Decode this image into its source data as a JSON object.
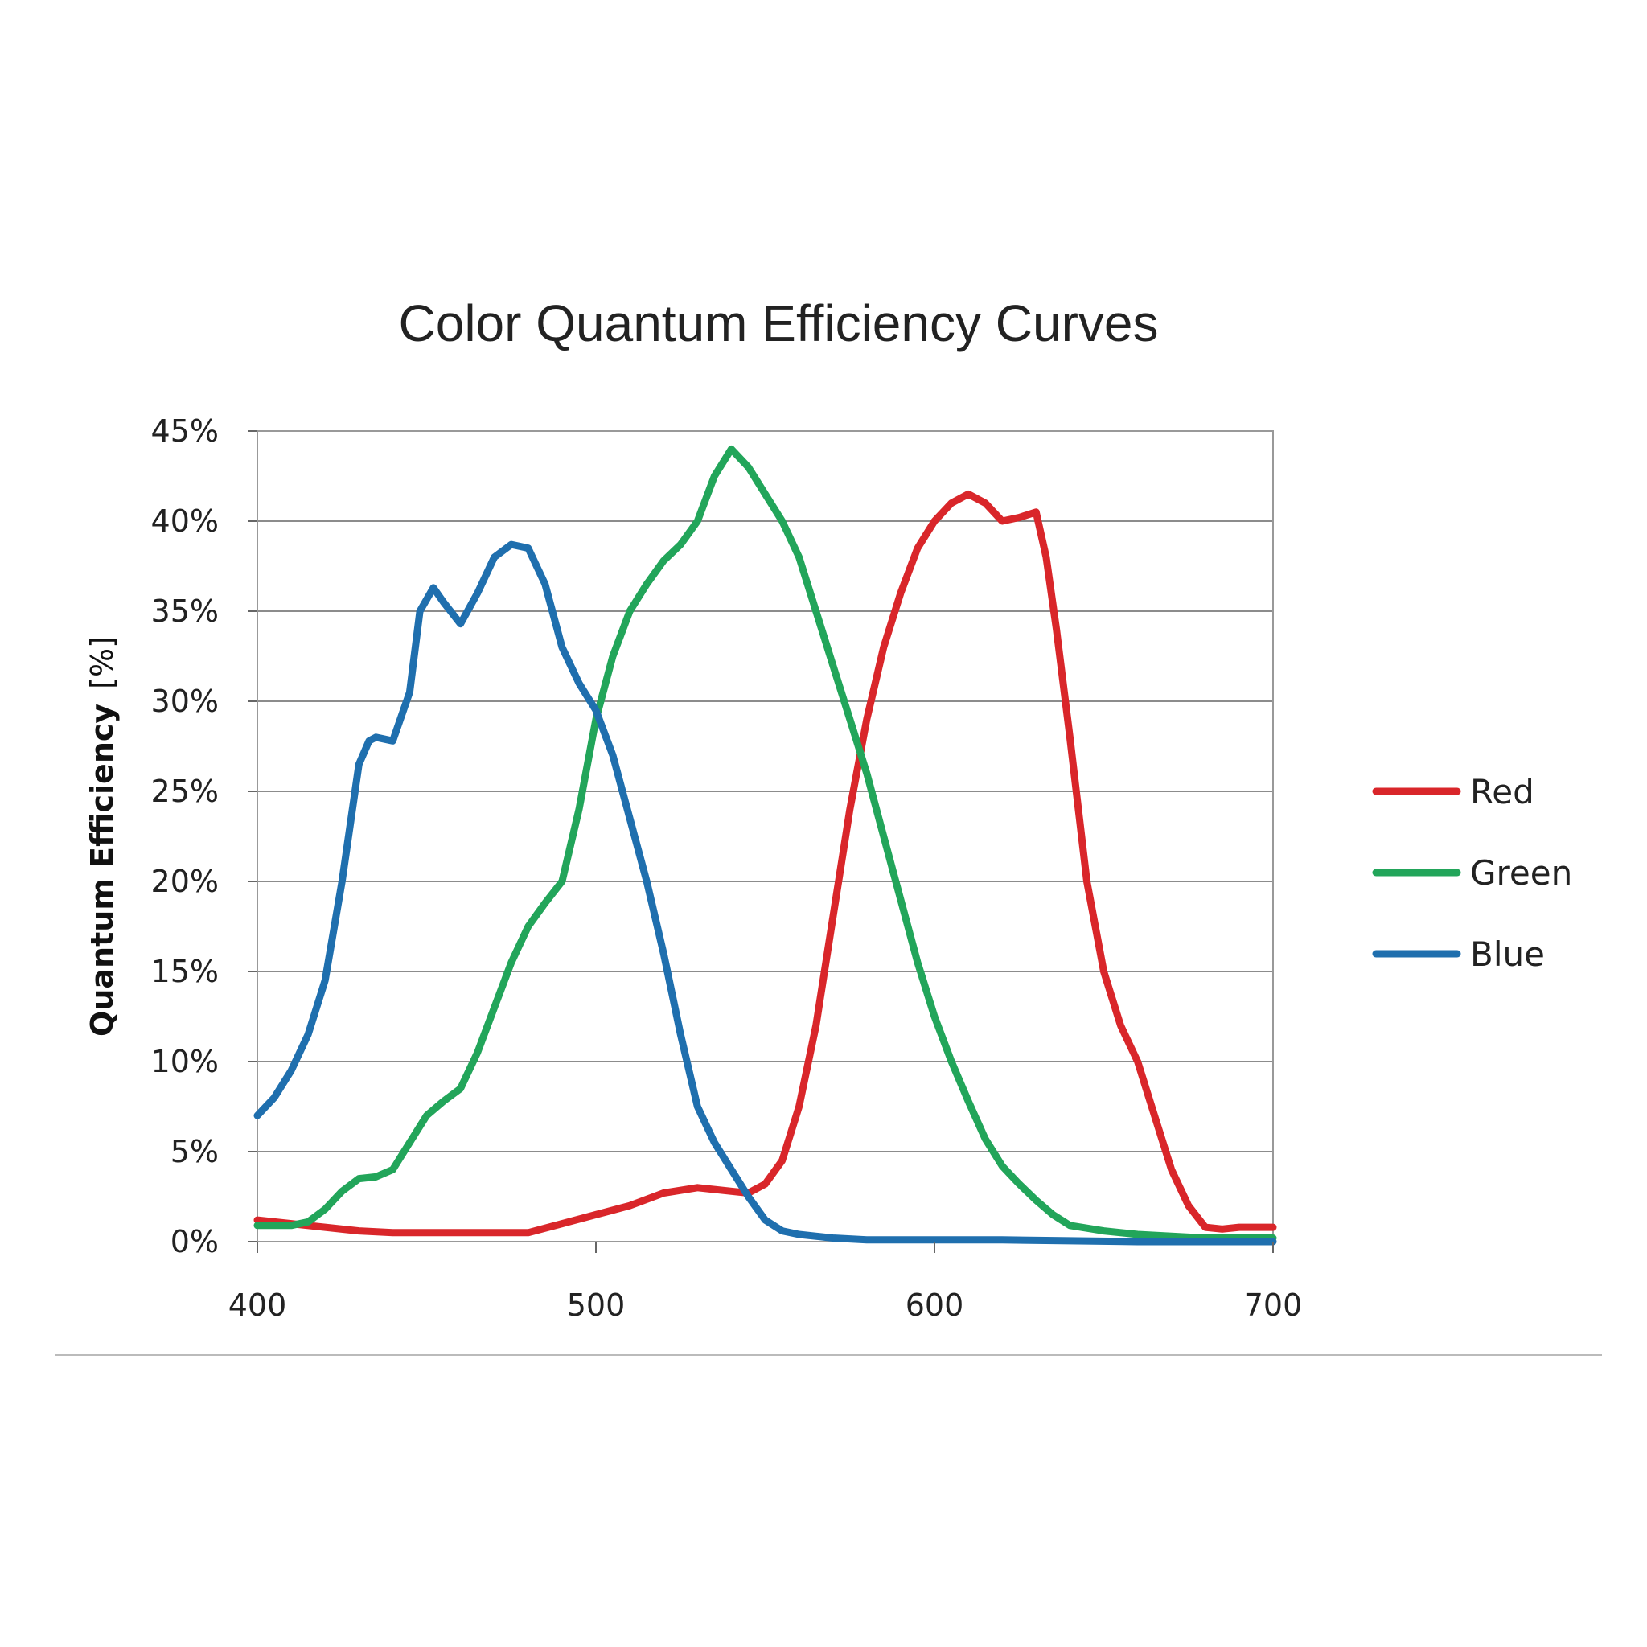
{
  "chart_data": {
    "type": "line",
    "title": "Color Quantum Efficiency Curves",
    "ylabel": "Quantum Efficiency",
    "ylabel_unit": "[%]",
    "xlabel": "",
    "xlim": [
      400,
      700
    ],
    "ylim": [
      0,
      45
    ],
    "xticks": [
      400,
      500,
      600,
      700
    ],
    "xtick_labels": [
      "400",
      "500",
      "600",
      "700"
    ],
    "yticks": [
      0,
      5,
      10,
      15,
      20,
      25,
      30,
      35,
      40,
      45
    ],
    "ytick_labels": [
      "0%",
      "5%",
      "10%",
      "15%",
      "20%",
      "25%",
      "30%",
      "35%",
      "40%",
      "45%"
    ],
    "grid": true,
    "legend_position": "right",
    "series": [
      {
        "name": "Red",
        "color": "#d9262a",
        "points": [
          [
            400,
            1.2
          ],
          [
            410,
            1.0
          ],
          [
            420,
            0.8
          ],
          [
            430,
            0.6
          ],
          [
            440,
            0.5
          ],
          [
            460,
            0.5
          ],
          [
            470,
            0.5
          ],
          [
            480,
            0.5
          ],
          [
            490,
            1.0
          ],
          [
            500,
            1.5
          ],
          [
            510,
            2.0
          ],
          [
            520,
            2.7
          ],
          [
            530,
            3.0
          ],
          [
            540,
            2.8
          ],
          [
            545,
            2.7
          ],
          [
            550,
            3.2
          ],
          [
            555,
            4.5
          ],
          [
            560,
            7.5
          ],
          [
            565,
            12
          ],
          [
            570,
            18
          ],
          [
            575,
            24
          ],
          [
            580,
            29
          ],
          [
            585,
            33
          ],
          [
            590,
            36
          ],
          [
            595,
            38.5
          ],
          [
            600,
            40
          ],
          [
            605,
            41
          ],
          [
            610,
            41.5
          ],
          [
            615,
            41
          ],
          [
            620,
            40
          ],
          [
            625,
            40.2
          ],
          [
            630,
            40.5
          ],
          [
            633,
            38
          ],
          [
            636,
            34
          ],
          [
            640,
            28
          ],
          [
            645,
            20
          ],
          [
            650,
            15
          ],
          [
            655,
            12
          ],
          [
            660,
            10
          ],
          [
            665,
            7
          ],
          [
            670,
            4
          ],
          [
            675,
            2
          ],
          [
            680,
            0.8
          ],
          [
            685,
            0.7
          ],
          [
            690,
            0.8
          ],
          [
            700,
            0.8
          ]
        ]
      },
      {
        "name": "Green",
        "color": "#22a55a",
        "points": [
          [
            400,
            0.9
          ],
          [
            410,
            0.9
          ],
          [
            415,
            1.1
          ],
          [
            420,
            1.8
          ],
          [
            425,
            2.8
          ],
          [
            430,
            3.5
          ],
          [
            435,
            3.6
          ],
          [
            440,
            4.0
          ],
          [
            445,
            5.5
          ],
          [
            450,
            7.0
          ],
          [
            455,
            7.8
          ],
          [
            460,
            8.5
          ],
          [
            465,
            10.5
          ],
          [
            470,
            13.0
          ],
          [
            475,
            15.5
          ],
          [
            480,
            17.5
          ],
          [
            485,
            18.8
          ],
          [
            490,
            20.0
          ],
          [
            495,
            24.0
          ],
          [
            500,
            29.0
          ],
          [
            505,
            32.5
          ],
          [
            510,
            35.0
          ],
          [
            515,
            36.5
          ],
          [
            520,
            37.8
          ],
          [
            525,
            38.7
          ],
          [
            530,
            40.0
          ],
          [
            535,
            42.5
          ],
          [
            540,
            44.0
          ],
          [
            545,
            43.0
          ],
          [
            550,
            41.5
          ],
          [
            555,
            40.0
          ],
          [
            560,
            38.0
          ],
          [
            565,
            35.0
          ],
          [
            570,
            32.0
          ],
          [
            575,
            29.0
          ],
          [
            580,
            26.0
          ],
          [
            585,
            22.5
          ],
          [
            590,
            19.0
          ],
          [
            595,
            15.5
          ],
          [
            600,
            12.5
          ],
          [
            605,
            10.0
          ],
          [
            610,
            7.8
          ],
          [
            615,
            5.7
          ],
          [
            620,
            4.2
          ],
          [
            625,
            3.2
          ],
          [
            630,
            2.3
          ],
          [
            635,
            1.5
          ],
          [
            640,
            0.9
          ],
          [
            650,
            0.6
          ],
          [
            660,
            0.4
          ],
          [
            670,
            0.3
          ],
          [
            680,
            0.2
          ],
          [
            700,
            0.2
          ]
        ]
      },
      {
        "name": "Blue",
        "color": "#1f6fae",
        "points": [
          [
            400,
            7.0
          ],
          [
            405,
            8.0
          ],
          [
            410,
            9.5
          ],
          [
            415,
            11.5
          ],
          [
            420,
            14.5
          ],
          [
            425,
            20.0
          ],
          [
            430,
            26.5
          ],
          [
            433,
            27.8
          ],
          [
            435,
            28.0
          ],
          [
            440,
            27.8
          ],
          [
            445,
            30.5
          ],
          [
            448,
            35.0
          ],
          [
            452,
            36.3
          ],
          [
            455,
            35.5
          ],
          [
            460,
            34.3
          ],
          [
            465,
            36.0
          ],
          [
            470,
            38.0
          ],
          [
            475,
            38.7
          ],
          [
            480,
            38.5
          ],
          [
            485,
            36.5
          ],
          [
            490,
            33.0
          ],
          [
            495,
            31.0
          ],
          [
            500,
            29.5
          ],
          [
            505,
            27.0
          ],
          [
            510,
            23.5
          ],
          [
            515,
            20.0
          ],
          [
            520,
            16.0
          ],
          [
            525,
            11.5
          ],
          [
            530,
            7.5
          ],
          [
            535,
            5.5
          ],
          [
            540,
            4.0
          ],
          [
            545,
            2.5
          ],
          [
            550,
            1.2
          ],
          [
            555,
            0.6
          ],
          [
            560,
            0.4
          ],
          [
            570,
            0.2
          ],
          [
            580,
            0.1
          ],
          [
            600,
            0.1
          ],
          [
            620,
            0.1
          ],
          [
            640,
            0.05
          ],
          [
            660,
            0.0
          ],
          [
            700,
            0.0
          ]
        ]
      }
    ]
  }
}
